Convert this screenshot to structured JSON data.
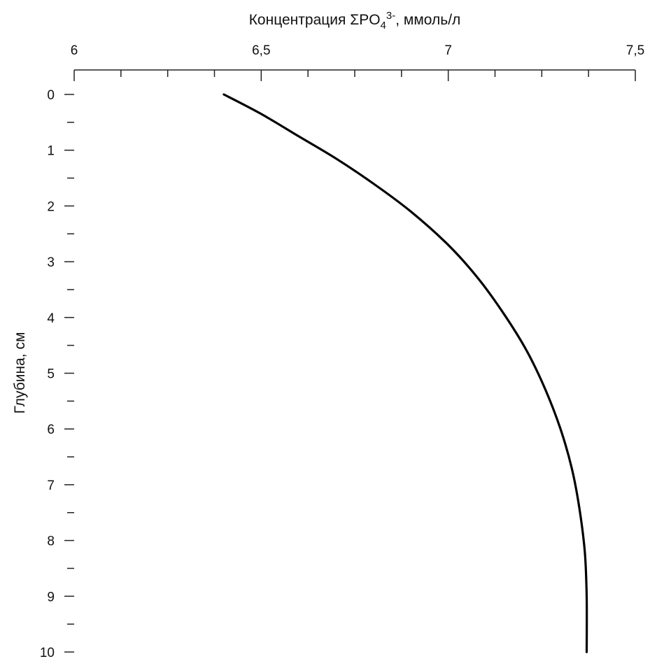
{
  "chart_data": {
    "type": "line",
    "title": "",
    "xlabel": {
      "prefix": "Концентрация ΣPO",
      "sub": "4",
      "sup": "3-",
      "suffix": ", ммоль/л"
    },
    "ylabel": "Глубина, см",
    "x_axis_position": "top",
    "y_inverted": true,
    "xlim": [
      6,
      7.5
    ],
    "ylim": [
      0,
      10
    ],
    "x_major_ticks": [
      6,
      6.5,
      7,
      7.5
    ],
    "x_tick_labels": [
      "6",
      "6,5",
      "7",
      "7,5"
    ],
    "x_minor_step": 0.125,
    "y_major_ticks": [
      0,
      1,
      2,
      3,
      4,
      5,
      6,
      7,
      8,
      9,
      10
    ],
    "y_tick_labels": [
      "0",
      "1",
      "2",
      "3",
      "4",
      "5",
      "6",
      "7",
      "8",
      "9",
      "10"
    ],
    "y_minor_step": 0.5,
    "grid": false,
    "legend": "none",
    "line_color": "#000000",
    "series": [
      {
        "x": [
          6.4,
          6.5,
          6.6,
          6.7,
          6.8,
          6.9,
          7.0,
          7.08,
          7.15,
          7.21,
          7.26,
          7.3,
          7.33,
          7.35,
          7.365,
          7.37,
          7.37
        ],
        "y": [
          0.0,
          0.35,
          0.75,
          1.15,
          1.6,
          2.1,
          2.7,
          3.3,
          3.95,
          4.6,
          5.3,
          6.0,
          6.7,
          7.4,
          8.2,
          9.0,
          10.0
        ]
      }
    ]
  }
}
